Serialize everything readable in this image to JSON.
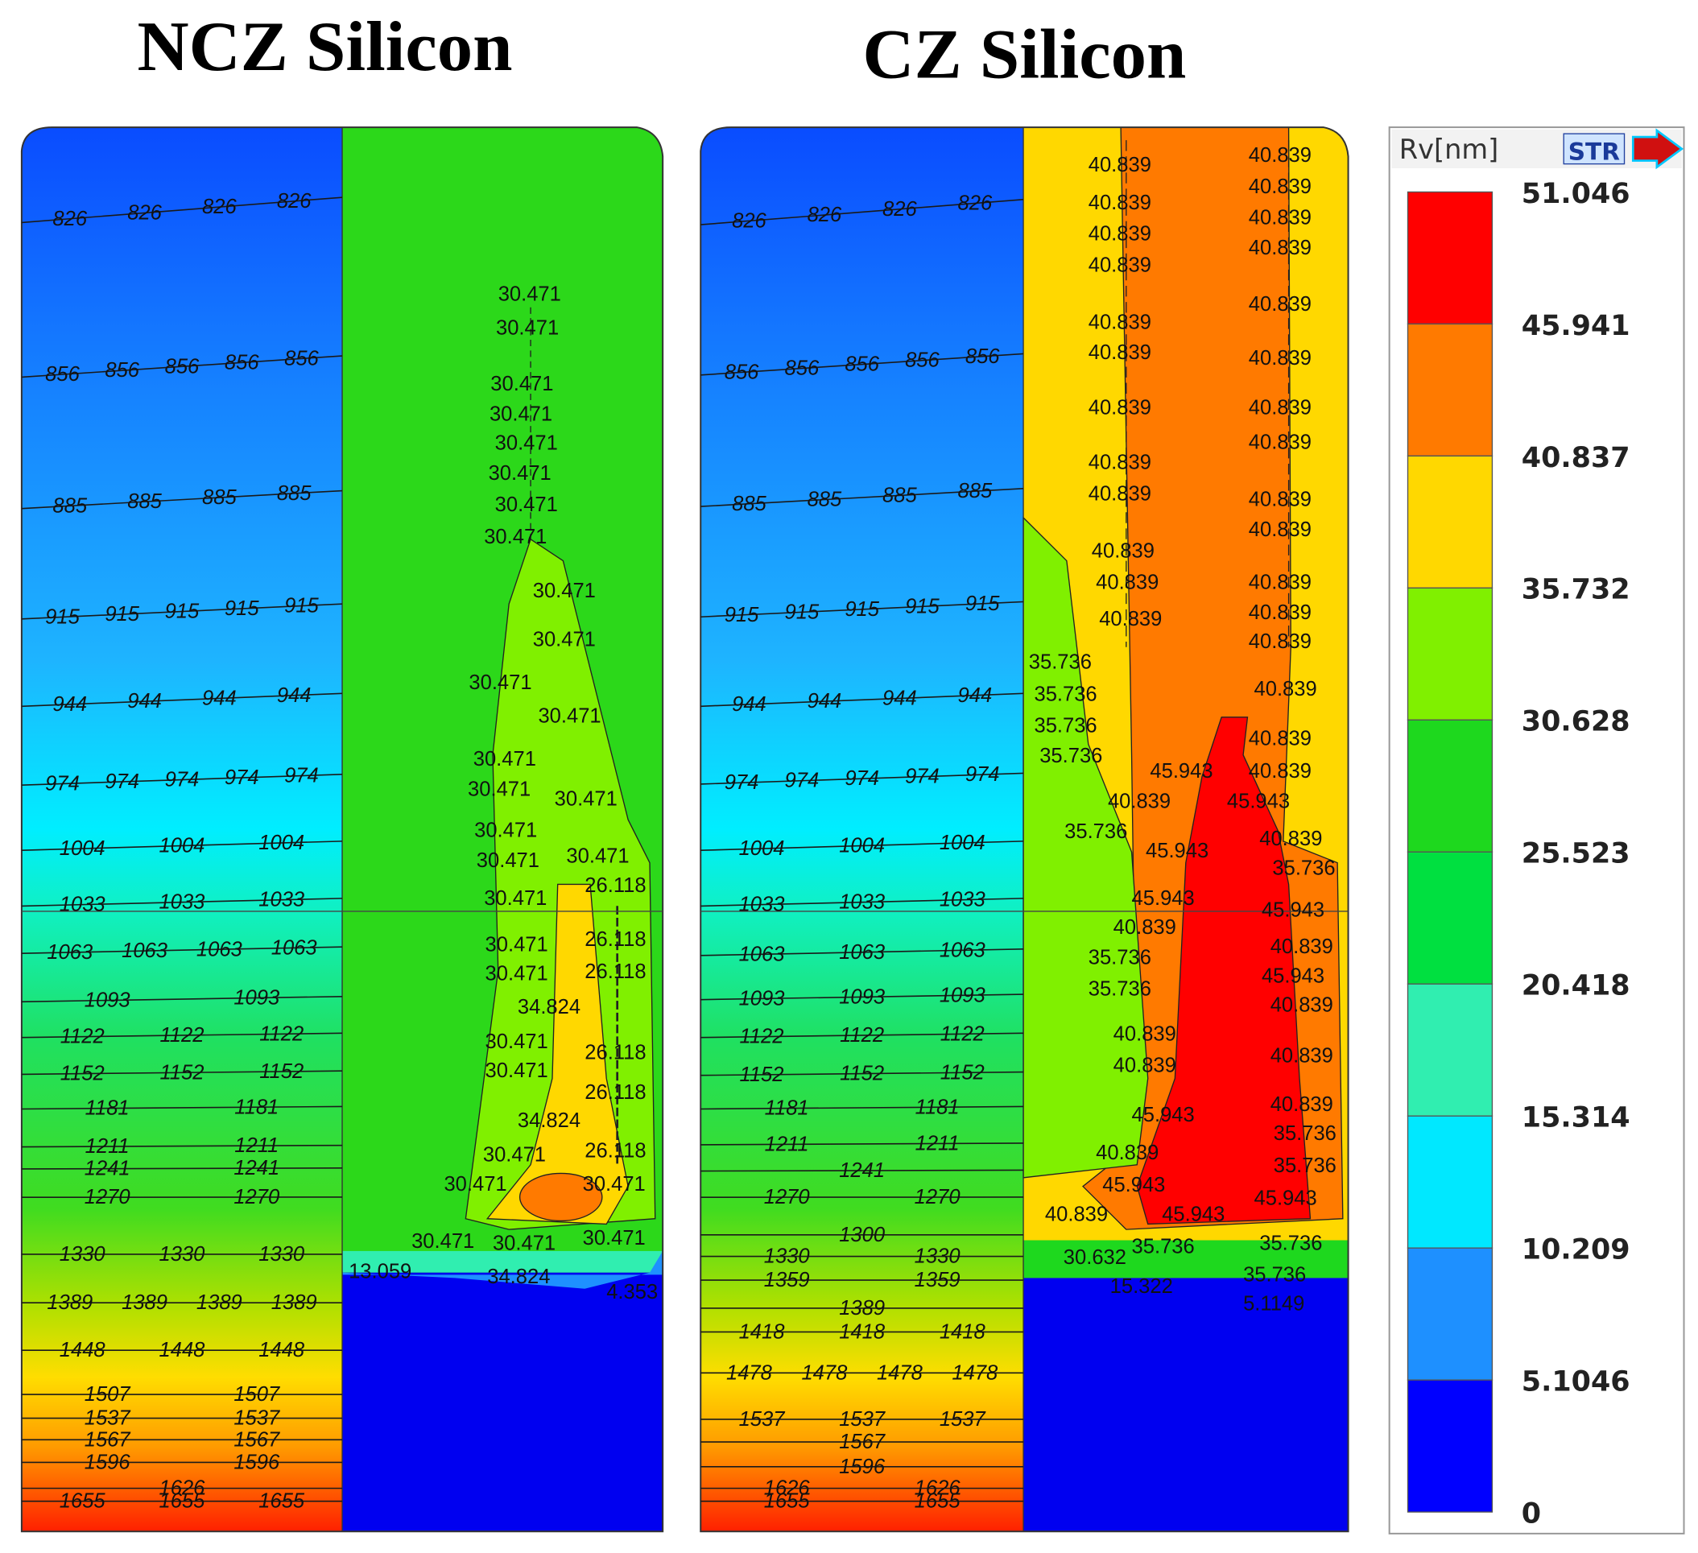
{
  "panels": [
    {
      "title": "NCZ Silicon",
      "isotherms": [
        [
          "826",
          "826",
          "826",
          "826"
        ],
        [
          "856",
          "856",
          "856",
          "856",
          "856"
        ],
        [
          "885",
          "885",
          "885",
          "885"
        ],
        [
          "915",
          "915",
          "915",
          "915",
          "915"
        ],
        [
          "944",
          "944",
          "944",
          "944"
        ],
        [
          "974",
          "974",
          "974",
          "974",
          "974"
        ],
        [
          "1004",
          "1004",
          "1004"
        ],
        [
          "1033",
          "1033",
          "1033"
        ],
        [
          "1063",
          "1063",
          "1063",
          "1063"
        ],
        [
          "1093",
          "1093"
        ],
        [
          "1122",
          "1122",
          "1122"
        ],
        [
          "1152",
          "1152",
          "1152"
        ],
        [
          "1181",
          "1181"
        ],
        [
          "1211",
          "1211"
        ],
        [
          "1241",
          "1241"
        ],
        [
          "1270",
          "1270"
        ],
        [
          "1330",
          "1330",
          "1330"
        ],
        [
          "1389",
          "1389",
          "1389",
          "1389"
        ],
        [
          "1448",
          "1448",
          "1448"
        ],
        [
          "1507",
          "1507"
        ],
        [
          "1537",
          "1537"
        ],
        [
          "1567",
          "1567"
        ],
        [
          "1596",
          "1596"
        ],
        [
          "1626"
        ],
        [
          "1655",
          "1655",
          "1655"
        ]
      ],
      "rv_labels": [
        "30.471",
        "30.471",
        "30.471",
        "30.471",
        "30.471",
        "30.471",
        "30.471",
        "30.471",
        "30.471",
        "30.471",
        "30.471",
        "30.471",
        "30.471",
        "30.471",
        "30.471",
        "30.471",
        "30.471",
        "30.471",
        "30.471",
        "30.471",
        "30.471",
        "30.471",
        "30.471",
        "30.471",
        "30.471",
        "30.471",
        "30.471",
        "30.471",
        "30.471",
        "26.118",
        "26.118",
        "26.118",
        "26.118",
        "26.118",
        "26.118",
        "34.824",
        "34.824",
        "34.824",
        "13.059",
        "4.353"
      ]
    },
    {
      "title": "CZ Silicon",
      "isotherms": [
        [
          "826",
          "826",
          "826",
          "826"
        ],
        [
          "856",
          "856",
          "856",
          "856",
          "856"
        ],
        [
          "885",
          "885",
          "885",
          "885"
        ],
        [
          "915",
          "915",
          "915",
          "915",
          "915"
        ],
        [
          "944",
          "944",
          "944",
          "944"
        ],
        [
          "974",
          "974",
          "974",
          "974",
          "974"
        ],
        [
          "1004",
          "1004",
          "1004"
        ],
        [
          "1033",
          "1033",
          "1033"
        ],
        [
          "1063",
          "1063",
          "1063"
        ],
        [
          "1093",
          "1093",
          "1093"
        ],
        [
          "1122",
          "1122",
          "1122"
        ],
        [
          "1152",
          "1152",
          "1152"
        ],
        [
          "1181",
          "1181"
        ],
        [
          "1211",
          "1211"
        ],
        [
          "1241"
        ],
        [
          "1270",
          "1270"
        ],
        [
          "1300"
        ],
        [
          "1330",
          "1330"
        ],
        [
          "1359",
          "1359"
        ],
        [
          "1389"
        ],
        [
          "1418",
          "1418",
          "1418"
        ],
        [
          "1478",
          "1478",
          "1478",
          "1478"
        ],
        [
          "1537",
          "1537",
          "1537"
        ],
        [
          "1567"
        ],
        [
          "1596"
        ],
        [
          "1626",
          "1626"
        ],
        [
          "1655",
          "1655"
        ]
      ],
      "rv_labels": [
        "40.839",
        "40.839",
        "40.839",
        "40.839",
        "40.839",
        "40.839",
        "40.839",
        "40.839",
        "40.839",
        "40.839",
        "40.839",
        "40.839",
        "40.839",
        "40.839",
        "40.839",
        "40.839",
        "40.839",
        "40.839",
        "40.839",
        "40.839",
        "40.839",
        "40.839",
        "40.839",
        "40.839",
        "40.839",
        "40.839",
        "40.839",
        "40.839",
        "40.839",
        "40.839",
        "40.839",
        "40.839",
        "40.839",
        "40.839",
        "40.839",
        "40.839",
        "40.839",
        "40.839",
        "40.839",
        "35.736",
        "35.736",
        "35.736",
        "35.736",
        "35.736",
        "35.736",
        "35.736",
        "35.736",
        "35.736",
        "35.736",
        "35.736",
        "35.736",
        "35.736",
        "45.943",
        "45.943",
        "45.943",
        "45.943",
        "45.943",
        "45.943",
        "45.943",
        "45.943",
        "45.943",
        "45.943",
        "30.632",
        "15.322",
        "5.1149"
      ]
    }
  ],
  "colorbar": {
    "title": "Rv[nm]",
    "badge": "STR",
    "ticks": [
      "51.046",
      "45.941",
      "40.837",
      "35.732",
      "30.628",
      "25.523",
      "20.418",
      "15.314",
      "10.209",
      "5.1046",
      "0"
    ],
    "colors": [
      "#ff0000",
      "#ff7a00",
      "#ffd800",
      "#80f000",
      "#1ed81e",
      "#00e040",
      "#30eeb0",
      "#00e8ff",
      "#1e90ff",
      "#0000ff"
    ]
  }
}
